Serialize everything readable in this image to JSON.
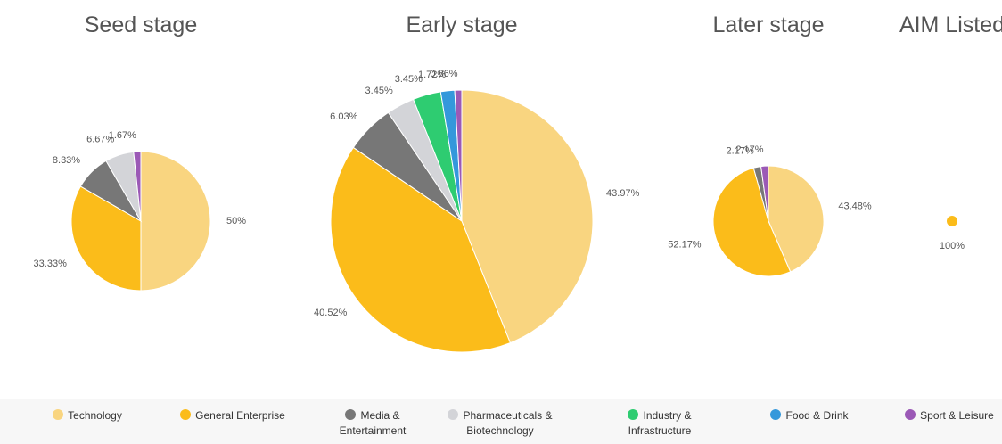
{
  "legend": [
    {
      "name": "Technology",
      "color": "#f9d580"
    },
    {
      "name": "General Enterprise",
      "color": "#fbbc1a"
    },
    {
      "name": "Media & Entertainment",
      "color": "#777777"
    },
    {
      "name": "Pharmaceuticals & Biotechnology",
      "color": "#d3d4d8"
    },
    {
      "name": "Industry & Infrastructure",
      "color": "#2ecc71"
    },
    {
      "name": "Food & Drink",
      "color": "#3498db"
    },
    {
      "name": "Sport & Leisure",
      "color": "#9b59b6"
    }
  ],
  "chart_data": [
    {
      "type": "pie",
      "title": "Seed stage",
      "values": [
        50,
        33.33,
        8.33,
        6.67,
        0,
        0,
        1.67
      ],
      "value_labels": [
        "50%",
        "33.33%",
        "8.33%",
        "6.67%",
        null,
        null,
        "1.67%"
      ]
    },
    {
      "type": "pie",
      "title": "Early stage",
      "values": [
        43.97,
        40.52,
        6.03,
        3.45,
        3.45,
        1.72,
        0.86
      ],
      "value_labels": [
        "43.97%",
        "40.52%",
        "6.03%",
        "3.45%",
        "3.45%",
        "1.72%",
        "0.86%"
      ]
    },
    {
      "type": "pie",
      "title": "Later stage",
      "values": [
        43.48,
        52.17,
        2.17,
        0,
        0,
        0,
        2.17
      ],
      "value_labels": [
        "43.48%",
        "52.17%",
        "2.17%",
        null,
        null,
        null,
        "2.17%"
      ]
    },
    {
      "type": "pie",
      "title": "AIM Listed",
      "values": [
        0,
        100,
        0,
        0,
        0,
        0,
        0
      ],
      "value_labels": [
        null,
        "100%",
        null,
        null,
        null,
        null,
        null
      ]
    }
  ]
}
